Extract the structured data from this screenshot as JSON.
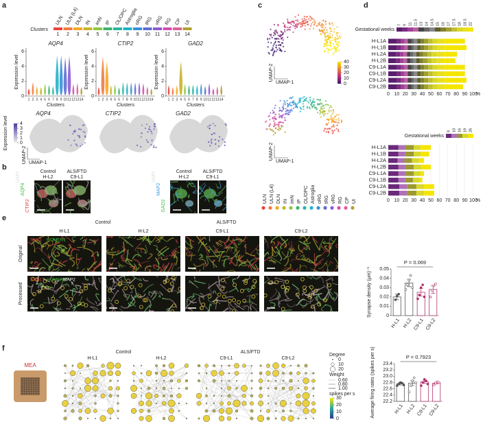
{
  "panels": {
    "a": {
      "label": "a",
      "clusters_title": "Clusters",
      "clusters": [
        "ULN",
        "ULN (L4)",
        "DLN",
        "IN",
        "imN",
        "IP",
        "OL/OPC",
        "Astroglia",
        "oRG",
        "tRG",
        "vRG",
        "RG",
        "CP",
        "UI"
      ],
      "cluster_numbers": [
        1,
        2,
        3,
        4,
        5,
        6,
        7,
        8,
        9,
        10,
        11,
        12,
        13,
        14
      ],
      "cluster_colors": [
        "#e8443a",
        "#f07b3f",
        "#f5a623",
        "#c9b326",
        "#8cc63f",
        "#3cb371",
        "#2bb5a0",
        "#20b2c8",
        "#3a8fd9",
        "#5b6fd6",
        "#8e5bd1",
        "#d04fb0",
        "#e0609a",
        "#b0a030"
      ],
      "genes": [
        "AQP4",
        "CTIP2",
        "GAD2"
      ],
      "y_label": "Expression level",
      "x_label": "Clusters",
      "yticks": [
        0,
        2,
        4,
        6
      ],
      "expr_title": "Expression level",
      "expr_ticks": [
        0,
        1,
        2,
        3,
        4
      ],
      "umap_x": "UMAP-1",
      "umap_y": "UMAP-2"
    },
    "b": {
      "label": "b",
      "groups": [
        {
          "title": "Control",
          "sample": "H-L2"
        },
        {
          "title": "ALS/FTD",
          "sample": "C9-L1"
        },
        {
          "title": "Control",
          "sample": "H-L2"
        },
        {
          "title": "ALS/FTD",
          "sample": "C9-L1"
        }
      ],
      "stains_left": [
        "CTIP2",
        "AQP4",
        "DAPI"
      ],
      "stains_right": [
        "GAD2",
        "MAP2",
        "DAPI"
      ]
    },
    "c": {
      "label": "c",
      "ticks": [
        0,
        10,
        20,
        30,
        40
      ],
      "umap_x": "UMAP-1",
      "umap_y": "UMAP-2"
    },
    "d": {
      "label": "d"
    },
    "e": {
      "label": "e",
      "control": "Control",
      "als": "ALS/FTD",
      "samples": [
        "H-L1",
        "H-L2",
        "C9-L1",
        "C9-L2"
      ],
      "rows": [
        "Original",
        "Processed"
      ],
      "stains_original": [
        "SYN1",
        "HOMER1"
      ],
      "stains_processed": [
        "SYN1",
        "HOMER1",
        "MAP2"
      ]
    },
    "f": {
      "label": "f",
      "mea": "MEA",
      "control": "Control",
      "als": "ALS/FTD",
      "samples": [
        "H-L1",
        "H-L2",
        "C9-L1",
        "C9-L2"
      ],
      "degree_title": "Degree",
      "degree_ticks": [
        0,
        10,
        20
      ],
      "weight_title": "Weight",
      "weight_ticks": [
        "0.60",
        "0.80",
        "1.00"
      ],
      "spikes_title": "spikes per s",
      "spikes_ticks": [
        0,
        10,
        20,
        30
      ]
    }
  },
  "chart_data": [
    {
      "type": "stacked_barh",
      "legend_title": "Gestational weeks",
      "x_label": "%",
      "categories": [
        "H-L1A",
        "H-L1B",
        "H-L2A",
        "H-L2B",
        "C9-L1A",
        "C9-L1B",
        "C9-L2A",
        "C9-L2B"
      ],
      "xlim": [
        0,
        100
      ],
      "xticks": [
        0,
        10,
        20,
        30,
        40,
        50,
        60,
        70,
        80,
        90,
        100
      ],
      "series": [
        {
          "name": "7",
          "color": "#5a1e6e",
          "values": [
            10,
            10,
            9,
            9,
            10,
            10,
            10,
            10
          ]
        },
        {
          "name": "9",
          "color": "#7a2a80",
          "values": [
            5,
            5,
            5,
            5,
            5,
            5,
            5,
            5
          ]
        },
        {
          "name": "11",
          "color": "#a0409a",
          "values": [
            4,
            4,
            4,
            4,
            4,
            4,
            4,
            4
          ]
        },
        {
          "name": "11.5",
          "color": "#b8609f",
          "values": [
            4,
            4,
            4,
            4,
            4,
            4,
            4,
            4
          ]
        },
        {
          "name": "13",
          "color": "#444444",
          "values": [
            4,
            4,
            4,
            4,
            4,
            4,
            4,
            4
          ]
        },
        {
          "name": "14",
          "color": "#666666",
          "values": [
            3,
            3,
            3,
            3,
            3,
            3,
            3,
            3
          ]
        },
        {
          "name": "14.5",
          "color": "#888888",
          "values": [
            4,
            4,
            4,
            4,
            4,
            4,
            4,
            4
          ]
        },
        {
          "name": "15",
          "color": "#5e5e2a",
          "values": [
            4,
            4,
            4,
            4,
            4,
            4,
            4,
            4
          ]
        },
        {
          "name": "16",
          "color": "#808030",
          "values": [
            4,
            4,
            4,
            4,
            4,
            4,
            4,
            4
          ]
        },
        {
          "name": "17",
          "color": "#a0a030",
          "values": [
            5,
            5,
            5,
            5,
            5,
            5,
            5,
            5
          ]
        },
        {
          "name": "17.5",
          "color": "#c0c030",
          "values": [
            5,
            5,
            5,
            5,
            5,
            5,
            5,
            5
          ]
        },
        {
          "name": "18",
          "color": "#d8d82a",
          "values": [
            6,
            6,
            6,
            6,
            6,
            6,
            6,
            6
          ]
        },
        {
          "name": "18.5",
          "color": "#e8e020",
          "values": [
            8,
            8,
            8,
            8,
            8,
            8,
            8,
            8
          ]
        },
        {
          "name": "22",
          "color": "#f5e600",
          "values": [
            24,
            26,
            16,
            14,
            24,
            24,
            26,
            22
          ]
        }
      ]
    },
    {
      "type": "stacked_barh",
      "legend_title": "Gestational weeks",
      "x_label": "%",
      "categories": [
        "H-L1A",
        "H-L1B",
        "H-L2A",
        "H-L2B",
        "C9-L1A",
        "C9-L1B",
        "C9-L2A",
        "C9-L2B"
      ],
      "xlim": [
        0,
        100
      ],
      "xticks": [
        0,
        10,
        20,
        30,
        40,
        50,
        60,
        70,
        80,
        90,
        100
      ],
      "series": [
        {
          "name": "8",
          "color": "#6a2a7a",
          "values": [
            12,
            12,
            11,
            12,
            12,
            12,
            13,
            13
          ]
        },
        {
          "name": "10",
          "color": "#b070b8",
          "values": [
            8,
            8,
            8,
            8,
            8,
            8,
            9,
            9
          ]
        },
        {
          "name": "16",
          "color": "#9a9a30",
          "values": [
            10,
            10,
            9,
            10,
            10,
            9,
            11,
            11
          ]
        },
        {
          "name": "19",
          "color": "#d8d830",
          "values": [
            8,
            8,
            8,
            9,
            8,
            8,
            9,
            9
          ]
        },
        {
          "name": "26",
          "color": "#f5e600",
          "values": [
            12,
            10,
            6,
            11,
            4,
            3,
            12,
            12
          ]
        }
      ]
    },
    {
      "type": "bar",
      "y_label": "Synapse density (μm)⁻¹",
      "annotation": "P = 0.069",
      "categories": [
        "H-L1",
        "H-L2",
        "C9-L1",
        "C9-L2"
      ],
      "values": [
        0.02,
        0.035,
        0.025,
        0.028
      ],
      "errors": [
        0.003,
        0.004,
        0.004,
        0.004
      ],
      "colors": [
        "#555555",
        "#555555",
        "#b0306a",
        "#b0306a"
      ],
      "points": [
        [
          0.017,
          0.021,
          0.023
        ],
        [
          0.028,
          0.033,
          0.038,
          0.043,
          0.03
        ],
        [
          0.018,
          0.022,
          0.03,
          0.033,
          0.02
        ],
        [
          0.02,
          0.027,
          0.032,
          0.034
        ]
      ],
      "ylim": [
        0,
        0.05
      ],
      "yticks": [
        0,
        0.01,
        0.02,
        0.03,
        0.04,
        0.05
      ]
    },
    {
      "type": "bar",
      "y_label": "Average firing rates (spikes per s)",
      "annotation": "P = 0.7923",
      "categories": [
        "H-L1",
        "H-L2",
        "C9-L1",
        "C9-L2"
      ],
      "values": [
        22.76,
        22.78,
        22.82,
        22.78
      ],
      "errors": [
        0.04,
        0.08,
        0.05,
        0.03
      ],
      "colors": [
        "#555555",
        "#555555",
        "#b0306a",
        "#b0306a"
      ],
      "points": [
        [
          22.7,
          22.75,
          22.8,
          22.78,
          22.72
        ],
        [
          22.5,
          22.7,
          22.85,
          22.95,
          22.8
        ],
        [
          22.7,
          22.8,
          22.9,
          22.85,
          22.75
        ],
        [
          22.72,
          22.78,
          22.82,
          22.8
        ]
      ],
      "ylim": [
        22.2,
        23.4
      ],
      "yticks": [
        22.2,
        22.4,
        22.6,
        22.8,
        {
          "value": 23,
          "label": "23.0"
        },
        23.2,
        23.4
      ]
    }
  ]
}
